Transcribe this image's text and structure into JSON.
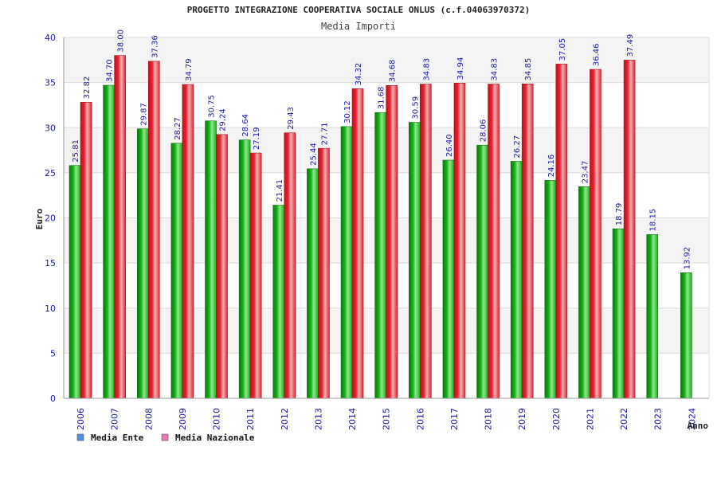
{
  "chart_data": {
    "type": "bar",
    "title": "PROGETTO INTEGRAZIONE COOPERATIVA SOCIALE ONLUS (c.f.04063970372)",
    "subtitle": "Media Importi",
    "xlabel": "Anno",
    "ylabel": "Euro",
    "ylim": [
      0,
      40
    ],
    "yticks": [
      0,
      5,
      10,
      15,
      20,
      25,
      30,
      35,
      40
    ],
    "grid": true,
    "legend_position": "bottom-left",
    "categories": [
      "2006",
      "2007",
      "2008",
      "2009",
      "2010",
      "2011",
      "2012",
      "2013",
      "2014",
      "2015",
      "2016",
      "2017",
      "2018",
      "2019",
      "2020",
      "2021",
      "2022",
      "2023",
      "2024"
    ],
    "series": [
      {
        "name": "Media Ente",
        "color": "#16b116",
        "values": [
          25.81,
          34.7,
          29.87,
          28.27,
          30.75,
          28.64,
          21.41,
          25.44,
          30.12,
          31.68,
          30.59,
          26.4,
          28.06,
          26.27,
          24.16,
          23.47,
          18.79,
          18.15,
          13.92
        ],
        "labels": [
          "25.81",
          "34.70",
          "29.87",
          "28.27",
          "30.75",
          "28.64",
          "21.41",
          "25.44",
          "30.12",
          "31.68",
          "30.59",
          "26.40",
          "28.06",
          "26.27",
          "24.16",
          "23.47",
          "18.79",
          "18.15",
          "13.92"
        ]
      },
      {
        "name": "Media Nazionale",
        "color": "#e8232e",
        "values": [
          32.82,
          38.0,
          37.36,
          34.79,
          29.24,
          27.19,
          29.43,
          27.71,
          34.32,
          34.68,
          34.83,
          34.94,
          34.83,
          34.85,
          37.05,
          36.46,
          37.49,
          null,
          null
        ],
        "labels": [
          "32.82",
          "38.00",
          "37.36",
          "34.79",
          "29.24",
          "27.19",
          "29.43",
          "27.71",
          "34.32",
          "34.68",
          "34.83",
          "34.94",
          "34.83",
          "34.85",
          "37.05",
          "36.46",
          "37.49",
          "",
          ""
        ]
      }
    ],
    "legend": [
      {
        "name": "Media Ente",
        "color": "#4f8fe6"
      },
      {
        "name": "Media Nazionale",
        "color": "#e87ab4"
      }
    ]
  }
}
